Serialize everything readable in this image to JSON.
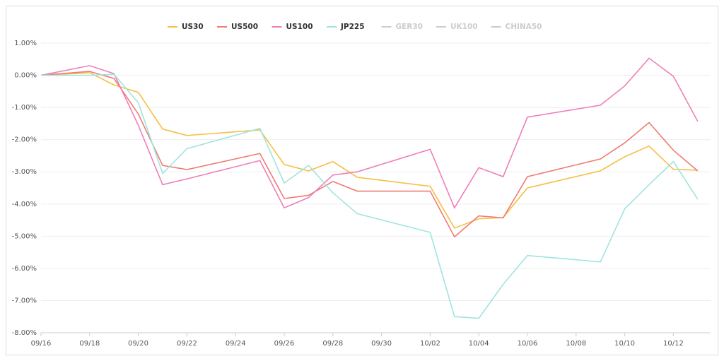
{
  "chart_data": {
    "type": "line",
    "x": [
      "09/16",
      "09/18",
      "09/19",
      "09/20",
      "09/21",
      "09/22",
      "09/25",
      "09/26",
      "09/27",
      "09/28",
      "09/29",
      "10/02",
      "10/03",
      "10/04",
      "10/05",
      "10/06",
      "10/09",
      "10/10",
      "10/11",
      "10/12",
      "10/13"
    ],
    "series": [
      {
        "name": "US30",
        "color": "#f5bf42",
        "values": [
          0,
          0.08,
          -0.3,
          -0.53,
          -1.67,
          -1.87,
          -1.7,
          -2.77,
          -2.97,
          -2.68,
          -3.17,
          -3.45,
          -4.75,
          -4.46,
          -4.42,
          -3.5,
          -2.97,
          -2.53,
          -2.2,
          -2.92,
          -2.95
        ]
      },
      {
        "name": "US500",
        "color": "#ef7b73",
        "values": [
          0,
          0.12,
          -0.1,
          -1.2,
          -2.8,
          -2.93,
          -2.43,
          -3.83,
          -3.73,
          -3.3,
          -3.6,
          -3.6,
          -5.02,
          -4.37,
          -4.43,
          -3.15,
          -2.6,
          -2.1,
          -1.47,
          -2.33,
          -2.97
        ]
      },
      {
        "name": "US100",
        "color": "#ee7fb8",
        "values": [
          0,
          0.3,
          0.05,
          -1.55,
          -3.4,
          -3.22,
          -2.65,
          -4.12,
          -3.8,
          -3.1,
          -3.0,
          -2.3,
          -4.12,
          -2.87,
          -3.15,
          -1.3,
          -0.93,
          -0.33,
          0.53,
          -0.03,
          -1.43
        ]
      },
      {
        "name": "JP225",
        "color": "#a0e4e0",
        "values": [
          0,
          0,
          0.03,
          -0.85,
          -3.05,
          -2.28,
          -1.65,
          -3.35,
          -2.8,
          -3.65,
          -4.3,
          -4.88,
          -7.5,
          -7.55,
          -6.5,
          -5.6,
          -5.8,
          -4.15,
          -3.4,
          -2.68,
          -3.85
        ]
      },
      {
        "name": "GER30",
        "color": "#cccccc",
        "hidden": true,
        "values": [
          null,
          null,
          null,
          null,
          null,
          null,
          null,
          null,
          null,
          null,
          null,
          null,
          null,
          null,
          null,
          null,
          null,
          null,
          null,
          null,
          null
        ]
      },
      {
        "name": "UK100",
        "color": "#cccccc",
        "hidden": true,
        "values": [
          null,
          null,
          null,
          null,
          null,
          null,
          null,
          null,
          null,
          null,
          null,
          null,
          null,
          null,
          null,
          null,
          null,
          null,
          null,
          null,
          null
        ]
      },
      {
        "name": "CHINA50",
        "color": "#cccccc",
        "hidden": true,
        "values": [
          null,
          null,
          null,
          null,
          null,
          null,
          null,
          null,
          null,
          null,
          null,
          null,
          null,
          null,
          null,
          null,
          null,
          null,
          null,
          null,
          null
        ]
      }
    ],
    "ylim": [
      -8,
      1
    ],
    "yticks": [
      {
        "value": 1,
        "label": "1.00%"
      },
      {
        "value": 0,
        "label": "0.00%"
      },
      {
        "value": -1,
        "label": "-1.00%"
      },
      {
        "value": -2,
        "label": "-2.00%"
      },
      {
        "value": -3,
        "label": "-3.00%"
      },
      {
        "value": -4,
        "label": "-4.00%"
      },
      {
        "value": -5,
        "label": "-5.00%"
      },
      {
        "value": -6,
        "label": "-6.00%"
      },
      {
        "value": -7,
        "label": "-7.00%"
      },
      {
        "value": -8,
        "label": "-8.00%"
      }
    ],
    "xticks": [
      "09/16",
      "09/18",
      "09/20",
      "09/22",
      "09/24",
      "09/26",
      "09/28",
      "09/30",
      "10/02",
      "10/04",
      "10/06",
      "10/08",
      "10/10",
      "10/12"
    ],
    "grid": true,
    "legend": "top"
  }
}
